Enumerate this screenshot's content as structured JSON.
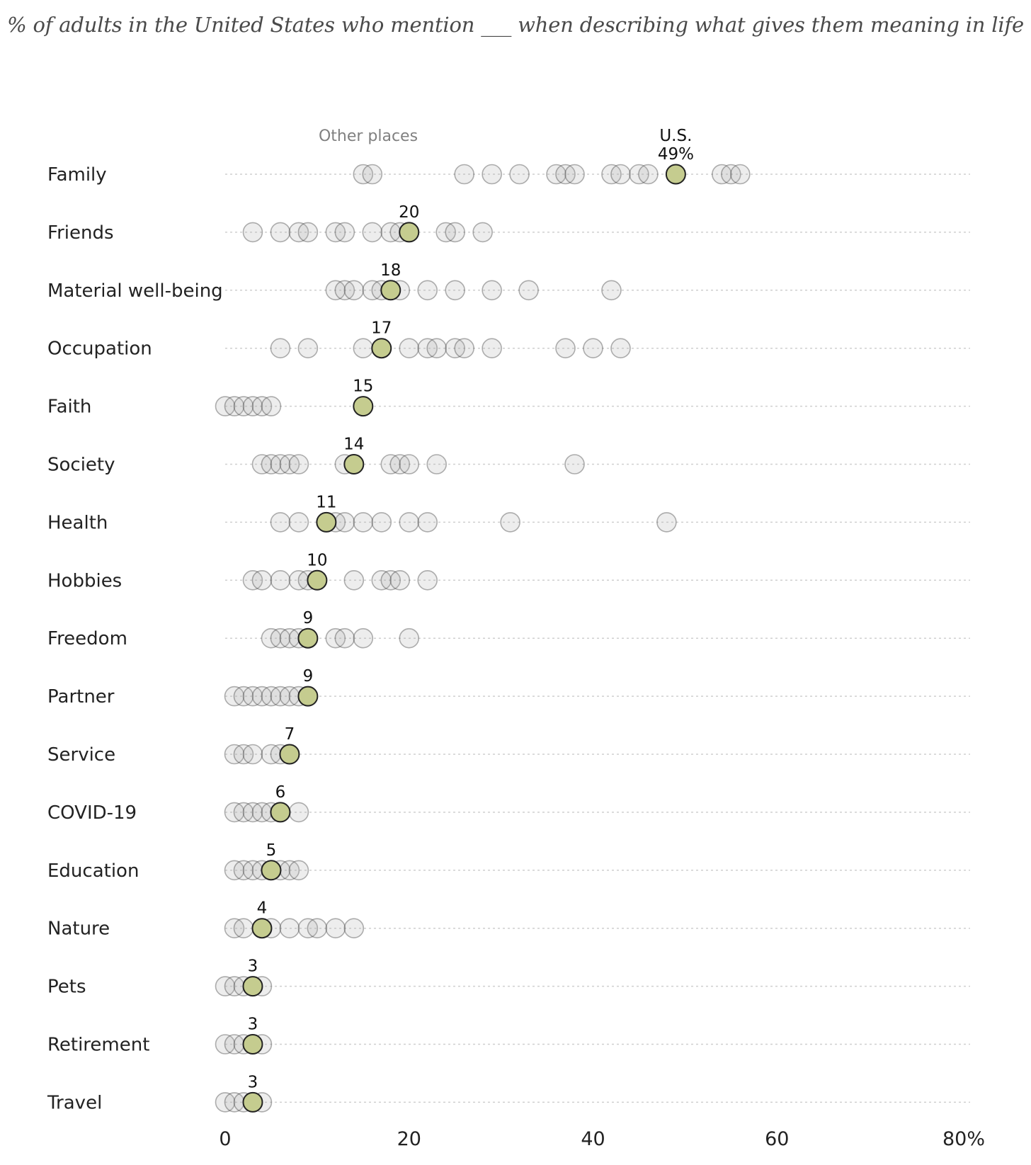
{
  "title": "% of adults in the United States who mention ___ when describing what gives them meaning in life",
  "chart_data": {
    "type": "scatter",
    "title": "% of adults in the United States who mention ___ when describing what gives them meaning in life",
    "xlabel": "",
    "ylabel": "",
    "xlim": [
      0,
      80
    ],
    "x_ticks": [
      "0",
      "20",
      "40",
      "60",
      "80%"
    ],
    "x_tick_values": [
      0,
      20,
      40,
      60,
      80
    ],
    "grid": false,
    "legend": {
      "other_label": "Other places",
      "us_label": "U.S."
    },
    "colors": {
      "us_fill": "#c5cc8f",
      "us_stroke": "#222222",
      "other_fill": "rgba(175,175,175,0.22)",
      "other_stroke": "rgba(60,60,60,0.4)"
    },
    "categories": [
      {
        "name": "Family",
        "us": 49,
        "us_label": "49%",
        "others": [
          15,
          16,
          26,
          29,
          32,
          36,
          37,
          38,
          42,
          43,
          45,
          46,
          54,
          55,
          56
        ]
      },
      {
        "name": "Friends",
        "us": 20,
        "us_label": "20",
        "others": [
          3,
          6,
          8,
          9,
          12,
          13,
          16,
          18,
          19,
          24,
          25,
          28
        ]
      },
      {
        "name": "Material well-being",
        "us": 18,
        "us_label": "18",
        "others": [
          12,
          13,
          14,
          16,
          17,
          19,
          22,
          25,
          29,
          33,
          42
        ]
      },
      {
        "name": "Occupation",
        "us": 17,
        "us_label": "17",
        "others": [
          6,
          9,
          15,
          20,
          22,
          23,
          25,
          26,
          29,
          37,
          40,
          43
        ]
      },
      {
        "name": "Faith",
        "us": 15,
        "us_label": "15",
        "others": [
          0,
          1,
          2,
          3,
          4,
          5
        ]
      },
      {
        "name": "Society",
        "us": 14,
        "us_label": "14",
        "others": [
          4,
          5,
          6,
          7,
          8,
          13,
          18,
          19,
          20,
          23,
          38
        ]
      },
      {
        "name": "Health",
        "us": 11,
        "us_label": "11",
        "others": [
          6,
          8,
          12,
          13,
          15,
          17,
          20,
          22,
          31,
          48
        ]
      },
      {
        "name": "Hobbies",
        "us": 10,
        "us_label": "10",
        "others": [
          3,
          4,
          6,
          8,
          9,
          14,
          17,
          18,
          19,
          22
        ]
      },
      {
        "name": "Freedom",
        "us": 9,
        "us_label": "9",
        "others": [
          5,
          6,
          7,
          8,
          12,
          13,
          15,
          20
        ]
      },
      {
        "name": "Partner",
        "us": 9,
        "us_label": "9",
        "others": [
          1,
          2,
          3,
          4,
          5,
          6,
          7,
          8
        ]
      },
      {
        "name": "Service",
        "us": 7,
        "us_label": "7",
        "others": [
          1,
          2,
          3,
          5,
          6
        ]
      },
      {
        "name": "COVID-19",
        "us": 6,
        "us_label": "6",
        "others": [
          1,
          2,
          3,
          4,
          5,
          8
        ]
      },
      {
        "name": "Education",
        "us": 5,
        "us_label": "5",
        "others": [
          1,
          2,
          3,
          4,
          6,
          7,
          8
        ]
      },
      {
        "name": "Nature",
        "us": 4,
        "us_label": "4",
        "others": [
          1,
          2,
          5,
          7,
          9,
          10,
          12,
          14
        ]
      },
      {
        "name": "Pets",
        "us": 3,
        "us_label": "3",
        "others": [
          0,
          1,
          2,
          4
        ]
      },
      {
        "name": "Retirement",
        "us": 3,
        "us_label": "3",
        "others": [
          0,
          1,
          2,
          4
        ]
      },
      {
        "name": "Travel",
        "us": 3,
        "us_label": "3",
        "others": [
          0,
          1,
          2,
          4
        ]
      }
    ]
  }
}
